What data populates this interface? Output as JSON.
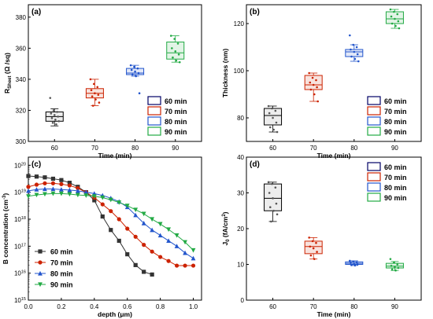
{
  "chart_data": [
    {
      "panel": "(a)",
      "type": "box",
      "xlabel": "Time (min)",
      "ylabel_main": "R",
      "ylabel_sub": "Sheet",
      "ylabel_rest": " (Ω /sq)",
      "categories": [
        "60",
        "70",
        "80",
        "90"
      ],
      "yticks": [
        300,
        320,
        340,
        360,
        380
      ],
      "ylim": [
        300,
        388
      ],
      "legend": [
        "60 min",
        "70 min",
        "80 min",
        "90 min"
      ],
      "legend_position": "bottom-right",
      "series": [
        {
          "category": "60",
          "color": "#000000",
          "q1": 313,
          "median": 316,
          "q3": 319,
          "whisker_low": 310,
          "whisker_high": 321,
          "points": [
            328,
            320,
            319,
            318,
            317,
            316,
            315,
            314,
            313,
            312,
            311
          ]
        },
        {
          "category": "70",
          "color": "#cc2200",
          "q1": 328,
          "median": 331,
          "q3": 334,
          "whisker_low": 323,
          "whisker_high": 340,
          "points": [
            340,
            337,
            335,
            333,
            331,
            330,
            329,
            327,
            325,
            323
          ]
        },
        {
          "category": "80",
          "color": "#2255cc",
          "q1": 343,
          "median": 344,
          "q3": 347,
          "whisker_low": 342,
          "whisker_high": 349,
          "points": [
            349,
            348,
            347,
            346,
            345,
            344,
            343,
            342,
            331
          ]
        },
        {
          "category": "90",
          "color": "#22aa44",
          "q1": 353,
          "median": 357,
          "q3": 364,
          "whisker_low": 351,
          "whisker_high": 368,
          "points": [
            368,
            366,
            363,
            360,
            358,
            356,
            354,
            352,
            351
          ]
        }
      ]
    },
    {
      "panel": "(b)",
      "type": "box",
      "xlabel": "Time (min)",
      "ylabel": "Thickness (nm)",
      "categories": [
        "60",
        "70",
        "80",
        "90"
      ],
      "yticks": [
        80,
        100,
        120
      ],
      "ylim": [
        70,
        128
      ],
      "legend": [
        "60 min",
        "70 min",
        "80 min",
        "90 min"
      ],
      "legend_position": "bottom-right",
      "series": [
        {
          "category": "60",
          "color": "#000000",
          "q1": 77,
          "median": 81,
          "q3": 84,
          "whisker_low": 74,
          "whisker_high": 85,
          "points": [
            85,
            84,
            83,
            82,
            80,
            78,
            76,
            75,
            74
          ]
        },
        {
          "category": "70",
          "color": "#cc2200",
          "q1": 92,
          "median": 94,
          "q3": 98,
          "whisker_low": 87,
          "whisker_high": 99,
          "points": [
            99,
            97,
            96,
            95,
            94,
            93,
            92,
            90,
            87
          ]
        },
        {
          "category": "80",
          "color": "#2255cc",
          "q1": 106,
          "median": 108,
          "q3": 109,
          "whisker_low": 104,
          "whisker_high": 111,
          "points": [
            115,
            111,
            110,
            109,
            108,
            107,
            106,
            105,
            104
          ]
        },
        {
          "category": "90",
          "color": "#22aa44",
          "q1": 120,
          "median": 122,
          "q3": 125,
          "whisker_low": 118,
          "whisker_high": 126,
          "points": [
            126,
            125,
            124,
            123,
            122,
            121,
            120,
            119,
            118
          ]
        }
      ]
    },
    {
      "panel": "(c)",
      "type": "line",
      "xlabel": "depth (μm)",
      "ylabel_main": "B concentration (cm",
      "ylabel_sup": "-3",
      "ylabel_close": ")",
      "yscale": "log",
      "xticks": [
        "0.0",
        "0.2",
        "0.4",
        "0.6",
        "0.8",
        "1.0"
      ],
      "xlim": [
        0,
        1.05
      ],
      "ytick_exponents": [
        "15",
        "16",
        "17",
        "18",
        "19",
        "20"
      ],
      "ylim_log10": [
        15,
        20.3
      ],
      "legend_position": "bottom-left",
      "series": [
        {
          "name": "60 min",
          "color": "#333333",
          "marker": "square",
          "x": [
            0,
            0.05,
            0.1,
            0.15,
            0.2,
            0.25,
            0.3,
            0.35,
            0.4,
            0.45,
            0.5,
            0.55,
            0.6,
            0.65,
            0.7,
            0.75
          ],
          "log10y": [
            19.6,
            19.58,
            19.55,
            19.5,
            19.45,
            19.35,
            19.2,
            19.0,
            18.7,
            18.1,
            17.6,
            17.2,
            16.7,
            16.3,
            16.05,
            15.95
          ]
        },
        {
          "name": "70 min",
          "color": "#cc2200",
          "marker": "circle",
          "x": [
            0,
            0.05,
            0.1,
            0.15,
            0.2,
            0.25,
            0.3,
            0.35,
            0.4,
            0.45,
            0.5,
            0.55,
            0.6,
            0.65,
            0.7,
            0.75,
            0.8,
            0.85,
            0.9,
            0.95,
            1.0
          ],
          "log10y": [
            19.2,
            19.28,
            19.33,
            19.33,
            19.3,
            19.25,
            19.15,
            19.0,
            18.8,
            18.55,
            18.3,
            18.0,
            17.65,
            17.35,
            17.05,
            16.8,
            16.6,
            16.45,
            16.28,
            16.28,
            16.28
          ]
        },
        {
          "name": "80 min",
          "color": "#2255cc",
          "marker": "triangle-up",
          "x": [
            0,
            0.05,
            0.1,
            0.15,
            0.2,
            0.25,
            0.3,
            0.35,
            0.4,
            0.45,
            0.5,
            0.55,
            0.6,
            0.65,
            0.7,
            0.75,
            0.8,
            0.85,
            0.9,
            0.95,
            1.0
          ],
          "log10y": [
            19.05,
            19.1,
            19.12,
            19.12,
            19.1,
            19.08,
            19.05,
            19.0,
            18.95,
            18.88,
            18.78,
            18.65,
            18.45,
            18.15,
            17.85,
            17.6,
            17.4,
            17.2,
            17.0,
            16.75,
            16.55
          ]
        },
        {
          "name": "90 min",
          "color": "#22aa44",
          "marker": "triangle-down",
          "x": [
            0,
            0.05,
            0.1,
            0.15,
            0.2,
            0.25,
            0.3,
            0.35,
            0.4,
            0.45,
            0.5,
            0.55,
            0.6,
            0.65,
            0.7,
            0.75,
            0.8,
            0.85,
            0.9,
            0.95,
            1.0
          ],
          "log10y": [
            18.85,
            18.9,
            18.93,
            18.95,
            18.95,
            18.93,
            18.9,
            18.88,
            18.85,
            18.8,
            18.72,
            18.62,
            18.5,
            18.35,
            18.2,
            18.0,
            17.82,
            17.62,
            17.4,
            17.15,
            16.85
          ]
        }
      ]
    },
    {
      "panel": "(d)",
      "type": "box",
      "xlabel": "Time (min)",
      "ylabel_main": "J",
      "ylabel_sub": "0",
      "ylabel_rest": " (fA/cm",
      "ylabel_sup": "2",
      "ylabel_close": ")",
      "categories": [
        "60",
        "70",
        "80",
        "90"
      ],
      "yticks": [
        0,
        10,
        20,
        30,
        40
      ],
      "ylim": [
        0,
        40
      ],
      "legend": [
        "60 min",
        "70 min",
        "80 min",
        "90 min"
      ],
      "legend_position": "top-right",
      "series": [
        {
          "category": "60",
          "color": "#000000",
          "q1": 25,
          "median": 28.5,
          "q3": 32.5,
          "whisker_low": 22,
          "whisker_high": 33,
          "points": [
            33,
            32.5,
            31.5,
            30,
            28.5,
            27,
            26,
            25,
            24,
            22
          ]
        },
        {
          "category": "70",
          "color": "#cc2200",
          "q1": 13,
          "median": 15,
          "q3": 16.5,
          "whisker_low": 11.5,
          "whisker_high": 17.5,
          "points": [
            17.5,
            16.5,
            16,
            15,
            14.5,
            13.5,
            12.5,
            11.5
          ]
        },
        {
          "category": "80",
          "color": "#2255cc",
          "q1": 10,
          "median": 10.3,
          "q3": 10.7,
          "whisker_low": 9.7,
          "whisker_high": 11,
          "points": [
            11,
            10.8,
            10.6,
            10.4,
            10.2,
            10,
            9.8,
            9.7
          ]
        },
        {
          "category": "90",
          "color": "#22aa44",
          "q1": 9,
          "median": 9.5,
          "q3": 10.3,
          "whisker_low": 8.3,
          "whisker_high": 10.8,
          "points": [
            11.5,
            10.5,
            10,
            9.6,
            9.3,
            9,
            8.6,
            8.3
          ]
        }
      ]
    }
  ]
}
